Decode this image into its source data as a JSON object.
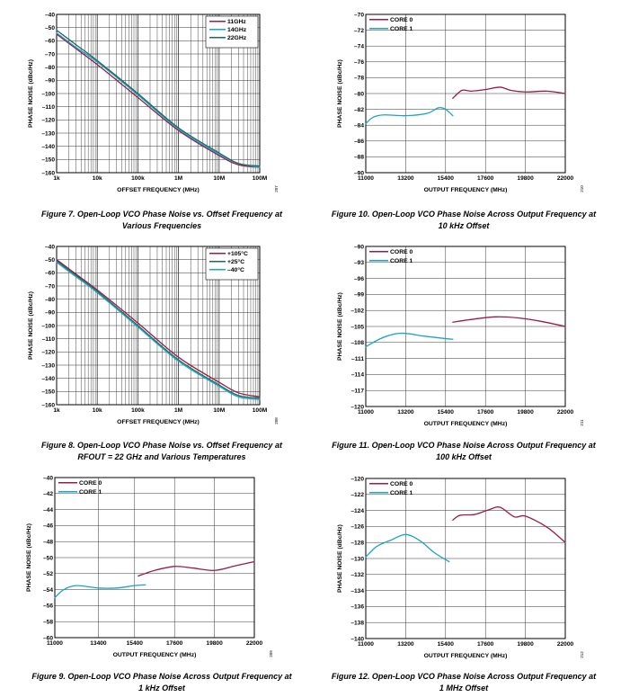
{
  "chart_data": [
    {
      "id": "fig7",
      "type": "line",
      "xscale": "log",
      "xlim": [
        1000,
        100000000
      ],
      "ylim": [
        -160,
        -40
      ],
      "xticks": [
        1000,
        10000,
        100000,
        1000000,
        10000000,
        100000000
      ],
      "xtick_labels": [
        "1k",
        "10k",
        "100k",
        "1M",
        "10M",
        "100M"
      ],
      "yticks": [
        -40,
        -50,
        -60,
        -70,
        -80,
        -90,
        -100,
        -110,
        -120,
        -130,
        -140,
        -150,
        -160
      ],
      "ytick_labels": [
        "–40",
        "–50",
        "–60",
        "–70",
        "–80",
        "–90",
        "–100",
        "–110",
        "–120",
        "–130",
        "–140",
        "–150",
        "–160"
      ],
      "xlabel": "OFFSET FREQUENCY (MHz)",
      "ylabel": "PHASE NOISE (dBc/Hz)",
      "grid": "log-minor",
      "legend_placement": "top-right",
      "side_code": "207",
      "series": [
        {
          "name": "11GHz",
          "color": "#9b1b45",
          "x": [
            1000,
            3000,
            10000,
            100000,
            1000000,
            10000000,
            30000000,
            100000000
          ],
          "y": [
            -55,
            -66,
            -78,
            -103,
            -128,
            -147,
            -154,
            -156
          ]
        },
        {
          "name": "14GHz",
          "color": "#1aa4cc",
          "x": [
            1000,
            3000,
            10000,
            100000,
            1000000,
            10000000,
            30000000,
            100000000
          ],
          "y": [
            -54,
            -65,
            -76,
            -101,
            -127,
            -146,
            -153,
            -156
          ]
        },
        {
          "name": "22GHz",
          "color": "#1d6a5e",
          "x": [
            1000,
            3000,
            10000,
            100000,
            1000000,
            10000000,
            30000000,
            100000000
          ],
          "y": [
            -52,
            -63,
            -75,
            -100,
            -126,
            -145,
            -153,
            -155
          ]
        }
      ]
    },
    {
      "id": "fig8",
      "type": "line",
      "xscale": "log",
      "xlim": [
        1000,
        100000000
      ],
      "ylim": [
        -160,
        -40
      ],
      "xticks": [
        1000,
        10000,
        100000,
        1000000,
        10000000,
        100000000
      ],
      "xtick_labels": [
        "1k",
        "10k",
        "100k",
        "1M",
        "10M",
        "100M"
      ],
      "yticks": [
        -40,
        -50,
        -60,
        -70,
        -80,
        -90,
        -100,
        -110,
        -120,
        -130,
        -140,
        -150,
        -160
      ],
      "ytick_labels": [
        "–40",
        "–50",
        "–60",
        "–70",
        "–80",
        "–90",
        "–100",
        "–110",
        "–120",
        "–130",
        "–140",
        "–150",
        "–160"
      ],
      "xlabel": "OFFSET FREQUENCY (MHz)",
      "ylabel": "PHASE NOISE (dBc/Hz)",
      "grid": "log-minor",
      "legend_placement": "top-right",
      "side_code": "208",
      "series": [
        {
          "name": "+105°C",
          "color": "#9b1b45",
          "x": [
            1000,
            3000,
            10000,
            100000,
            1000000,
            10000000,
            30000000,
            100000000
          ],
          "y": [
            -50,
            -61,
            -73,
            -98,
            -124,
            -143,
            -151,
            -154
          ]
        },
        {
          "name": "+25°C",
          "color": "#1d6a5e",
          "x": [
            1000,
            3000,
            10000,
            100000,
            1000000,
            10000000,
            30000000,
            100000000
          ],
          "y": [
            -51,
            -62,
            -74,
            -100,
            -126,
            -145,
            -153,
            -155
          ]
        },
        {
          "name": "–40°C",
          "color": "#1aa4cc",
          "x": [
            1000,
            3000,
            10000,
            100000,
            1000000,
            10000000,
            30000000,
            100000000
          ],
          "y": [
            -52,
            -63,
            -75,
            -101,
            -127,
            -146,
            -154,
            -156
          ]
        }
      ]
    },
    {
      "id": "fig9",
      "type": "line",
      "xscale": "linear",
      "xlim": [
        11000,
        22000
      ],
      "ylim": [
        -60,
        -40
      ],
      "xticks": [
        11000,
        13400,
        15400,
        17600,
        19800,
        22000
      ],
      "xtick_labels": [
        "11000",
        "13400",
        "15400",
        "17600",
        "19800",
        "22000"
      ],
      "yticks": [
        -40,
        -42,
        -44,
        -46,
        -48,
        -50,
        -52,
        -54,
        -56,
        -58,
        -60
      ],
      "ytick_labels": [
        "–40",
        "–42",
        "–44",
        "–46",
        "–48",
        "–50",
        "–52",
        "–54",
        "–56",
        "–58",
        "–60"
      ],
      "xlabel": "OUTPUT FREQUENCY (MHz)",
      "ylabel": "PHASE NOISE (dBc/Hz)",
      "grid": "linear",
      "legend_placement": "top-left",
      "side_code": "209",
      "series": [
        {
          "name": "CORE 0",
          "color": "#9b1b45",
          "x": [
            15600,
            16500,
            17600,
            18600,
            19800,
            21000,
            22000
          ],
          "y": [
            -52.3,
            -51.6,
            -51.1,
            -51.3,
            -51.6,
            -51.0,
            -50.5
          ]
        },
        {
          "name": "CORE 1",
          "color": "#1aa4cc",
          "x": [
            11000,
            11500,
            12200,
            13400,
            14400,
            15400,
            16000
          ],
          "y": [
            -55.0,
            -54.0,
            -53.5,
            -53.8,
            -53.8,
            -53.5,
            -53.4
          ]
        }
      ]
    },
    {
      "id": "fig10",
      "type": "line",
      "xscale": "linear",
      "xlim": [
        11000,
        22000
      ],
      "ylim": [
        -90,
        -70
      ],
      "xticks": [
        11000,
        13200,
        15400,
        17600,
        19800,
        22000
      ],
      "xtick_labels": [
        "11000",
        "13200",
        "15400",
        "17600",
        "19800",
        "22000"
      ],
      "yticks": [
        -70,
        -72,
        -74,
        -76,
        -78,
        -80,
        -82,
        -84,
        -86,
        -88,
        -90
      ],
      "ytick_labels": [
        "–70",
        "–72",
        "–74",
        "–76",
        "–78",
        "–80",
        "–82",
        "–84",
        "–86",
        "–88",
        "–90"
      ],
      "xlabel": "OUTPUT FREQUENCY (MHz)",
      "ylabel": "PHASE NOISE (dBc/Hz)",
      "grid": "linear",
      "legend_placement": "top-left",
      "side_code": "210",
      "series": [
        {
          "name": "CORE 0",
          "color": "#9b1b45",
          "x": [
            15800,
            16300,
            16800,
            17600,
            18400,
            19000,
            19800,
            21000,
            22000
          ],
          "y": [
            -80.6,
            -79.6,
            -79.7,
            -79.5,
            -79.2,
            -79.6,
            -79.8,
            -79.7,
            -80.0
          ]
        },
        {
          "name": "CORE 1",
          "color": "#1aa4cc",
          "x": [
            11000,
            11400,
            12000,
            13200,
            14400,
            15000,
            15400,
            15800
          ],
          "y": [
            -83.8,
            -83.0,
            -82.7,
            -82.8,
            -82.5,
            -81.8,
            -82.0,
            -82.8
          ]
        }
      ]
    },
    {
      "id": "fig11",
      "type": "line",
      "xscale": "linear",
      "xlim": [
        11000,
        22000
      ],
      "ylim": [
        -120,
        -90
      ],
      "xticks": [
        11000,
        13200,
        15400,
        17600,
        19800,
        22000
      ],
      "xtick_labels": [
        "11000",
        "13200",
        "15400",
        "17600",
        "19800",
        "22000"
      ],
      "yticks": [
        -90,
        -93,
        -96,
        -99,
        -102,
        -105,
        -108,
        -111,
        -114,
        -117,
        -120
      ],
      "ytick_labels": [
        "–90",
        "–93",
        "–96",
        "–99",
        "–102",
        "–105",
        "–108",
        "–111",
        "–114",
        "–117",
        "–120"
      ],
      "xlabel": "OUTPUT FREQUENCY (MHz)",
      "ylabel": "PHASE NOISE (dBc/Hz)",
      "grid": "linear",
      "legend_placement": "top-left",
      "side_code": "211",
      "series": [
        {
          "name": "CORE 0",
          "color": "#9b1b45",
          "x": [
            15800,
            17000,
            18200,
            19400,
            20600,
            22000
          ],
          "y": [
            -104.2,
            -103.6,
            -103.2,
            -103.4,
            -104.0,
            -105.0
          ]
        },
        {
          "name": "CORE 1",
          "color": "#1aa4cc",
          "x": [
            11000,
            11800,
            12600,
            13200,
            14200,
            15200,
            15800
          ],
          "y": [
            -108.8,
            -107.3,
            -106.4,
            -106.3,
            -106.8,
            -107.2,
            -107.4
          ]
        }
      ]
    },
    {
      "id": "fig12",
      "type": "line",
      "xscale": "linear",
      "xlim": [
        11000,
        22000
      ],
      "ylim": [
        -140,
        -120
      ],
      "xticks": [
        11000,
        13200,
        15400,
        17600,
        19800,
        22000
      ],
      "xtick_labels": [
        "11000",
        "13200",
        "15400",
        "17600",
        "19800",
        "22000"
      ],
      "yticks": [
        -120,
        -122,
        -124,
        -126,
        -128,
        -130,
        -132,
        -134,
        -136,
        -138,
        -140
      ],
      "ytick_labels": [
        "–120",
        "–122",
        "–124",
        "–126",
        "–128",
        "–130",
        "–132",
        "–134",
        "–136",
        "–138",
        "–140"
      ],
      "xlabel": "OUTPUT FREQUENCY (MHz)",
      "ylabel": "PHASE NOISE (dBc/Hz)",
      "grid": "linear",
      "legend_placement": "top-left",
      "side_code": "212",
      "series": [
        {
          "name": "CORE 0",
          "color": "#9b1b45",
          "x": [
            15800,
            16200,
            17000,
            17800,
            18400,
            19200,
            19800,
            21000,
            22000
          ],
          "y": [
            -125.2,
            -124.6,
            -124.5,
            -123.9,
            -123.6,
            -124.8,
            -124.7,
            -126.1,
            -128.0
          ]
        },
        {
          "name": "CORE 1",
          "color": "#1aa4cc",
          "x": [
            11000,
            11600,
            12400,
            13200,
            14000,
            14800,
            15600
          ],
          "y": [
            -129.8,
            -128.5,
            -127.7,
            -127.0,
            -127.8,
            -129.3,
            -130.4
          ]
        }
      ]
    }
  ],
  "captions": {
    "fig7": [
      "Figure 7. Open-Loop VCO Phase Noise vs. Offset Frequency at",
      "Various Frequencies"
    ],
    "fig8": [
      "Figure 8. Open-Loop VCO Phase Noise vs. Offset Frequency at",
      "RFOUT = 22 GHz and Various Temperatures"
    ],
    "fig9": [
      "Figure 9. Open-Loop VCO Phase Noise Across Output Frequency at",
      "1 kHz Offset"
    ],
    "fig10": [
      "Figure 10. Open-Loop VCO Phase Noise Across Output Frequency at",
      "10 kHz Offset"
    ],
    "fig11": [
      "Figure 11. Open-Loop VCO Phase Noise Across Output Frequency at",
      "100 kHz Offset"
    ],
    "fig12": [
      "Figure 12. Open-Loop VCO Phase Noise Across Output Frequency at",
      "1 MHz Offset"
    ]
  }
}
